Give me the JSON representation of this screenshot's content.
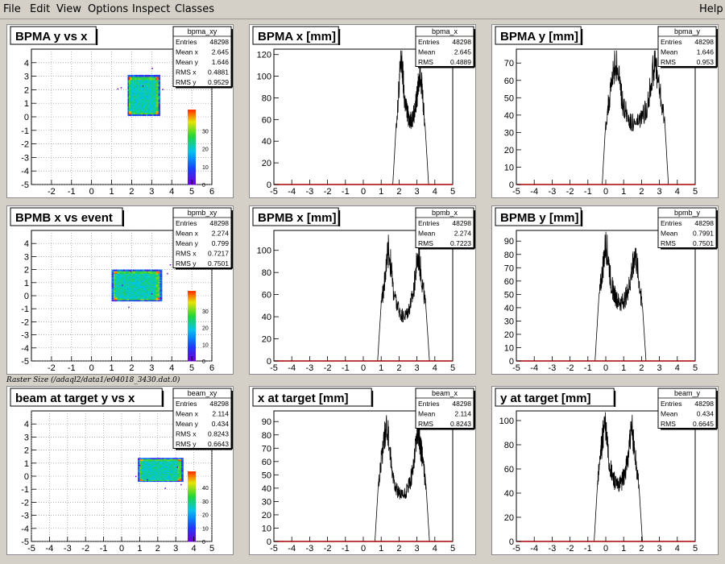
{
  "menu": {
    "items": [
      "File",
      "Edit",
      "View",
      "Options",
      "Inspect",
      "Classes"
    ],
    "help": "Help"
  },
  "caption": "Raster Size (/adaql2/data1/e04018_3430.dat.0)",
  "colors": {
    "hist_line": "#000000",
    "axis": "#000000",
    "bottom_axis_red": "#aa0000"
  },
  "chart_data": [
    {
      "type": "heatmap",
      "name": "bpma_xy",
      "title": "BPMA y vs x",
      "xlim": [
        -3,
        6
      ],
      "ylim": [
        -5,
        5
      ],
      "xticks": [
        "-2",
        "-1",
        "0",
        "1",
        "2",
        "3",
        "4",
        "5",
        "6"
      ],
      "yticks": [
        "-5",
        "-4",
        "-3",
        "-2",
        "-1",
        "0",
        "1",
        "2",
        "3",
        "4"
      ],
      "region": {
        "x": [
          1.8,
          3.4
        ],
        "y": [
          0.1,
          3.1
        ]
      },
      "z_ticks": [
        "0",
        "10",
        "20",
        "30"
      ],
      "stats": [
        [
          "Entries",
          "48298"
        ],
        [
          "Mean x",
          "2.645"
        ],
        [
          "Mean y",
          "1.646"
        ],
        [
          "RMS x",
          "0.4881"
        ],
        [
          "RMS y",
          "0.9529"
        ]
      ]
    },
    {
      "type": "line",
      "name": "bpma_x",
      "title": "BPMA x [mm]",
      "xlim": [
        -5,
        5
      ],
      "ylim": [
        0,
        125
      ],
      "xticks": [
        "-5",
        "-4",
        "-3",
        "-2",
        "-1",
        "0",
        "1",
        "2",
        "3",
        "4",
        "5"
      ],
      "yticks": [
        "0",
        "20",
        "40",
        "60",
        "80",
        "100",
        "120"
      ],
      "profile": {
        "x0": 1.85,
        "x1": 3.45,
        "lpeak": 118,
        "rpeak": 112,
        "valley": 62
      },
      "stats": [
        [
          "Entries",
          "48298"
        ],
        [
          "Mean",
          "2.645"
        ],
        [
          "RMS",
          "0.4889"
        ]
      ]
    },
    {
      "type": "line",
      "name": "bpma_y",
      "title": "BPMA y [mm]",
      "xlim": [
        -5,
        5
      ],
      "ylim": [
        0,
        78
      ],
      "xticks": [
        "-5",
        "-4",
        "-3",
        "-2",
        "-1",
        "0",
        "1",
        "2",
        "3",
        "4",
        "5"
      ],
      "yticks": [
        "0",
        "10",
        "20",
        "30",
        "40",
        "50",
        "60",
        "70"
      ],
      "profile": {
        "x0": 0.0,
        "x1": 3.3,
        "lpeak": 73,
        "rpeak": 72,
        "valley": 36
      },
      "stats": [
        [
          "Entries",
          "48298"
        ],
        [
          "Mean",
          "1.646"
        ],
        [
          "RMS",
          "0.953"
        ]
      ]
    },
    {
      "type": "heatmap",
      "name": "bpmb_xy",
      "title": "BPMB x vs event",
      "xlim": [
        -3,
        6
      ],
      "ylim": [
        -5,
        5
      ],
      "xticks": [
        "-2",
        "-1",
        "0",
        "1",
        "2",
        "3",
        "4",
        "5",
        "6"
      ],
      "yticks": [
        "-5",
        "-4",
        "-3",
        "-2",
        "-1",
        "0",
        "1",
        "2",
        "3",
        "4"
      ],
      "region": {
        "x": [
          1.0,
          3.5
        ],
        "y": [
          -0.4,
          2.0
        ]
      },
      "z_ticks": [
        "0",
        "10",
        "20",
        "30"
      ],
      "stats": [
        [
          "Entries",
          "48298"
        ],
        [
          "Mean x",
          "2.274"
        ],
        [
          "Mean y",
          "0.799"
        ],
        [
          "RMS x",
          "0.7217"
        ],
        [
          "RMS y",
          "0.7501"
        ]
      ]
    },
    {
      "type": "line",
      "name": "bpmb_x",
      "title": "BPMB x [mm]",
      "xlim": [
        -5,
        5
      ],
      "ylim": [
        0,
        118
      ],
      "xticks": [
        "-5",
        "-4",
        "-3",
        "-2",
        "-1",
        "0",
        "1",
        "2",
        "3",
        "4",
        "5"
      ],
      "yticks": [
        "0",
        "20",
        "40",
        "60",
        "80",
        "100"
      ],
      "profile": {
        "x0": 1.0,
        "x1": 3.5,
        "lpeak": 103,
        "rpeak": 98,
        "valley": 42
      },
      "stats": [
        [
          "Entries",
          "48298"
        ],
        [
          "Mean",
          "2.274"
        ],
        [
          "RMS",
          "0.7223"
        ]
      ]
    },
    {
      "type": "line",
      "name": "bpmb_y",
      "title": "BPMB y [mm]",
      "xlim": [
        -5,
        5
      ],
      "ylim": [
        0,
        98
      ],
      "xticks": [
        "-5",
        "-4",
        "-3",
        "-2",
        "-1",
        "0",
        "1",
        "2",
        "3",
        "4",
        "5"
      ],
      "yticks": [
        "0",
        "10",
        "20",
        "30",
        "40",
        "50",
        "60",
        "70",
        "80",
        "90"
      ],
      "profile": {
        "x0": -0.4,
        "x1": 2.05,
        "lpeak": 90,
        "rpeak": 83,
        "valley": 45
      },
      "stats": [
        [
          "Entries",
          "48298"
        ],
        [
          "Mean",
          "0.7991"
        ],
        [
          "RMS",
          "0.7501"
        ]
      ]
    },
    {
      "type": "heatmap",
      "name": "beam_xy",
      "title": "beam at target y vs x",
      "xlim": [
        -5,
        5
      ],
      "ylim": [
        -5,
        5
      ],
      "xticks": [
        "-5",
        "-4",
        "-3",
        "-2",
        "-1",
        "0",
        "1",
        "2",
        "3",
        "4",
        "5"
      ],
      "yticks": [
        "-5",
        "-4",
        "-3",
        "-2",
        "-1",
        "0",
        "1",
        "2",
        "3",
        "4"
      ],
      "region": {
        "x": [
          0.9,
          3.4
        ],
        "y": [
          -0.4,
          1.4
        ]
      },
      "z_ticks": [
        "0",
        "10",
        "20",
        "30",
        "40"
      ],
      "stats": [
        [
          "Entries",
          "48298"
        ],
        [
          "Mean x",
          "2.114"
        ],
        [
          "Mean y",
          "0.434"
        ],
        [
          "RMS x",
          "0.8243"
        ],
        [
          "RMS y",
          "0.6643"
        ]
      ]
    },
    {
      "type": "line",
      "name": "beam_x",
      "title": "x at target [mm]",
      "xlim": [
        -5,
        5
      ],
      "ylim": [
        0,
        98
      ],
      "xticks": [
        "-5",
        "-4",
        "-3",
        "-2",
        "-1",
        "0",
        "1",
        "2",
        "3",
        "4",
        "5"
      ],
      "yticks": [
        "0",
        "10",
        "20",
        "30",
        "40",
        "50",
        "60",
        "70",
        "80",
        "90"
      ],
      "profile": {
        "x0": 0.85,
        "x1": 3.5,
        "lpeak": 90,
        "rpeak": 87,
        "valley": 35
      },
      "stats": [
        [
          "Entries",
          "48298"
        ],
        [
          "Mean",
          "2.114"
        ],
        [
          "RMS",
          "0.8243"
        ]
      ]
    },
    {
      "type": "line",
      "name": "beam_y",
      "title": "y at target [mm]",
      "xlim": [
        -5,
        5
      ],
      "ylim": [
        0,
        108
      ],
      "xticks": [
        "-5",
        "-4",
        "-3",
        "-2",
        "-1",
        "0",
        "1",
        "2",
        "3",
        "4",
        "5"
      ],
      "yticks": [
        "0",
        "20",
        "40",
        "60",
        "80",
        "100"
      ],
      "profile": {
        "x0": -0.45,
        "x1": 1.85,
        "lpeak": 102,
        "rpeak": 95,
        "valley": 48
      },
      "stats": [
        [
          "Entries",
          "48298"
        ],
        [
          "Mean",
          "0.434"
        ],
        [
          "RMS",
          "0.6645"
        ]
      ]
    }
  ]
}
